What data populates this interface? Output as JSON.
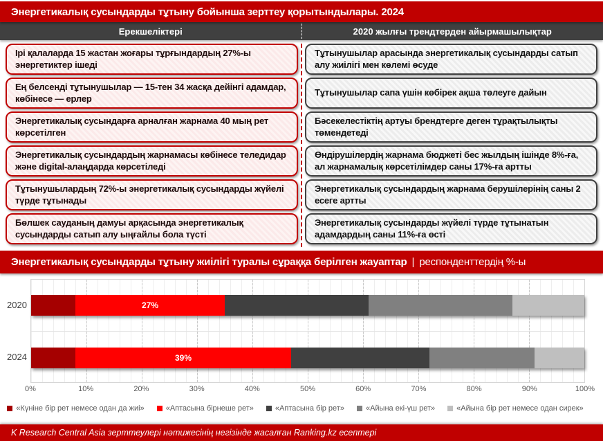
{
  "page": {
    "title": "Энергетикалық сусындарды тұтыну бойынша зерттеу қорытындылары. 2024",
    "footer": "K Research Central Asia зерттеулері нәтижесінің негізінде жасалған Ranking.kz есептері"
  },
  "columns": {
    "left_header": "Ерекшеліктері",
    "right_header": "2020 жылғы трендтерден айырмашылықтар"
  },
  "left_boxes": [
    "Ірі қалаларда 15 жастан жоғары тұрғындардың 27%-ы энергетиктер ішеді",
    "Ең белсенді тұтынушылар — 15-тен 34 жасқа дейінгі адамдар, көбінесе — ерлер",
    "Энергетикалық сусындарға арналған жарнама 40 мың рет көрсетілген",
    "Энергетикалық сусындардың жарнамасы көбінесе теледидар және digital-алаңдарда көрсетіледі",
    "Тұтынушылардың 72%-ы энергетикалық сусындарды жүйелі түрде тұтынады",
    "Бөлшек сауданың дамуы арқасында энергетикалық сусындарды сатып алу ыңғайлы бола түсті"
  ],
  "right_boxes": [
    "Тұтынушылар арасында энергетикалық сусындарды сатып алу жиілігі мен көлемі өсуде",
    "Тұтынушылар сапа үшін көбірек ақша төлеуге дайын",
    "Бәсекелестіктің артуы брендтерге деген тұрақтылықты төмендетеді",
    "Өндірушілердің жарнама бюджеті бес жылдың ішінде 8%-ға, ал жарнамалық көрсетілімдер саны 17%-ға артты",
    "Энергетикалық сусындардың жарнама берушілерінің саны 2 есеге артты",
    "Энергетикалық сусындарды жүйелі түрде тұтынатын адамдардың саны 11%-ға өсті"
  ],
  "chart_banner": {
    "title": "Энергетикалық сусындарды тұтыну жиілігі туралы сұраққа берілген жауаптар",
    "separator": "|",
    "subtitle": "респонденттердің %-ы"
  },
  "chart_data": {
    "type": "bar",
    "stacked": true,
    "orientation": "horizontal",
    "categories": [
      "2020",
      "2024"
    ],
    "series": [
      {
        "name": "«Күніне бір рет немесе одан да жиі»",
        "color": "#A50000",
        "values": [
          8,
          8
        ],
        "show_label": false
      },
      {
        "name": "«Аптасына бірнеше рет»",
        "color": "#FF0000",
        "values": [
          27,
          39
        ],
        "show_label": true
      },
      {
        "name": "«Аптасына бір рет»",
        "color": "#404040",
        "values": [
          26,
          25
        ],
        "show_label": false
      },
      {
        "name": "«Айына екі-үш рет»",
        "color": "#808080",
        "values": [
          26,
          19
        ],
        "show_label": false
      },
      {
        "name": "«Айына бір рет немесе одан сирек»",
        "color": "#BFBFBF",
        "values": [
          13,
          9
        ],
        "show_label": false
      }
    ],
    "data_labels_shown": [
      "27%",
      "39%"
    ],
    "xlim": [
      0,
      100
    ],
    "x_ticks": [
      "0%",
      "10%",
      "20%",
      "30%",
      "40%",
      "50%",
      "60%",
      "70%",
      "80%",
      "90%",
      "100%"
    ],
    "major_gridlines_pct": [
      10,
      20,
      30,
      40,
      50,
      60,
      70,
      80,
      90
    ],
    "legend_position": "bottom"
  },
  "colors": {
    "accent_red": "#C00000",
    "header_gray": "#404040",
    "legend_text": "#595959"
  }
}
